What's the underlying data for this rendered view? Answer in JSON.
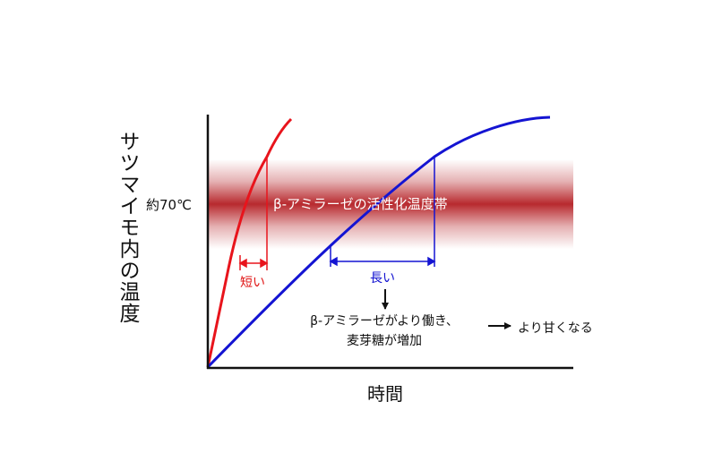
{
  "axes": {
    "y_label": "サツマイモ内の温度",
    "x_label": "時間",
    "temp_mark": "約70℃"
  },
  "band": {
    "label": "β-アミラーゼの活性化温度帯"
  },
  "markers": {
    "short": "短い",
    "long": "長い"
  },
  "note": {
    "line1": "β-アミラーゼがより働き、",
    "line2": "麦芽糖が増加"
  },
  "result": "より甘くなる",
  "colors": {
    "fast_curve": "#e8141c",
    "slow_curve": "#1414d2",
    "band": "#b41e23"
  }
}
